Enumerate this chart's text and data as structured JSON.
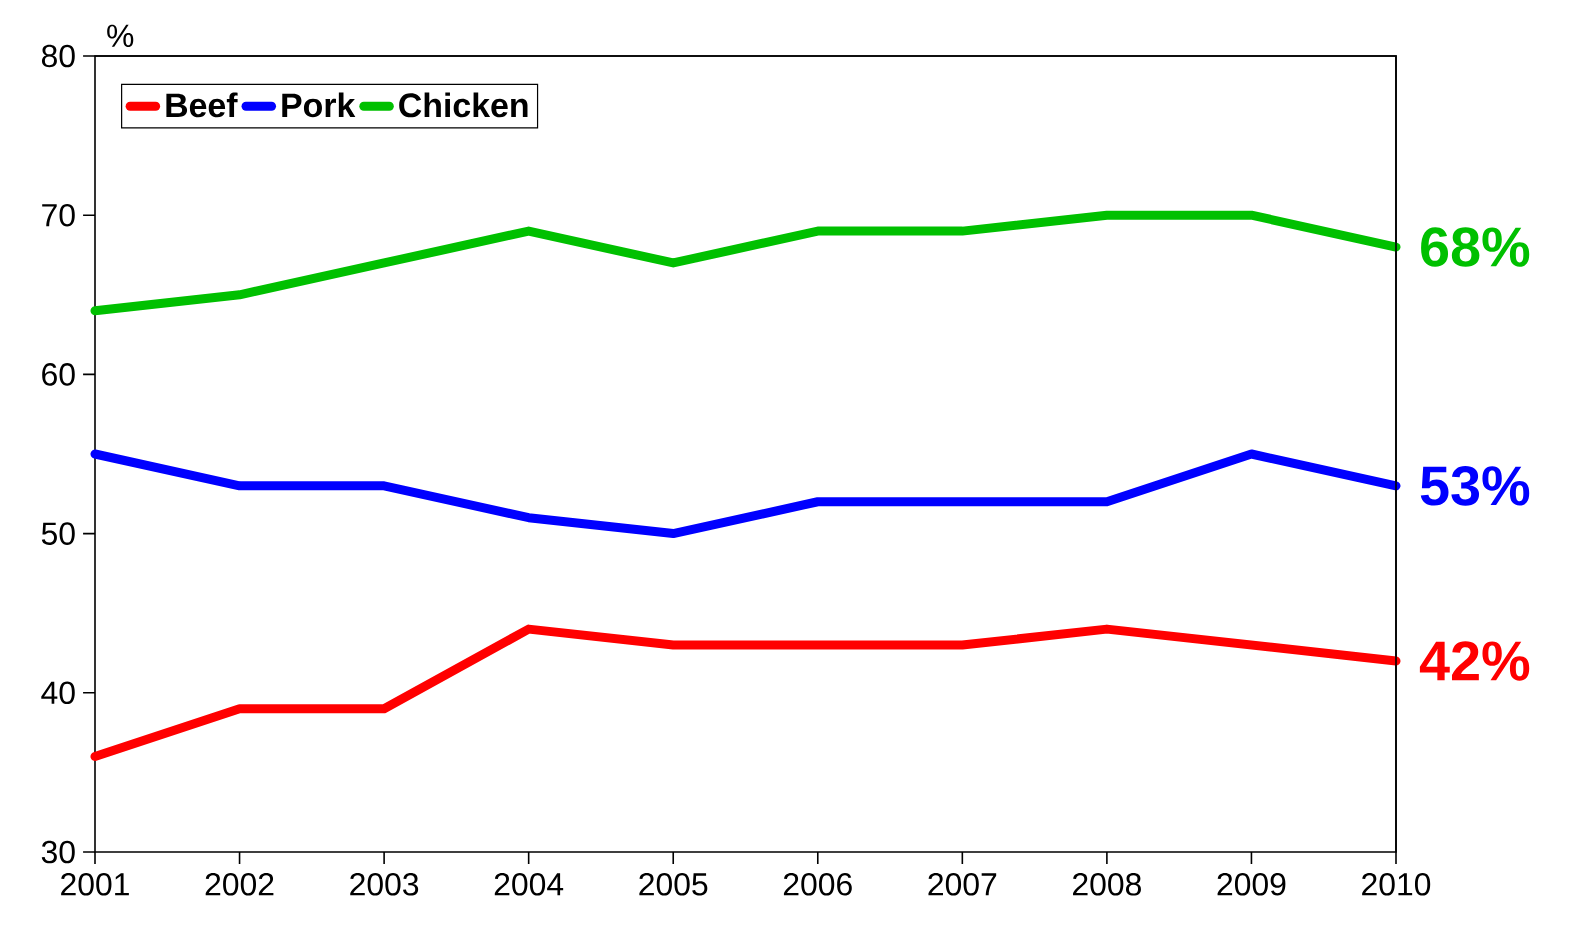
{
  "chart_data": {
    "type": "line",
    "ylabel": "%",
    "x": [
      2001,
      2002,
      2003,
      2004,
      2005,
      2006,
      2007,
      2008,
      2009,
      2010
    ],
    "xlim": [
      2001,
      2010
    ],
    "xticks": [
      2001,
      2002,
      2003,
      2004,
      2005,
      2006,
      2007,
      2008,
      2009,
      2010
    ],
    "ylim": [
      30,
      80
    ],
    "yticks": [
      30,
      40,
      50,
      60,
      70,
      80
    ],
    "legend": "top left",
    "line_style": "solid",
    "grid": false,
    "series": [
      {
        "name": "Beef",
        "color": "#ff0000",
        "values": [
          36,
          39,
          39,
          44,
          43,
          43,
          43,
          44,
          43,
          42
        ],
        "value_labels": [
          null,
          null,
          null,
          null,
          null,
          null,
          null,
          null,
          null,
          "42%"
        ]
      },
      {
        "name": "Pork",
        "color": "#0000ff",
        "values": [
          55,
          53,
          53,
          51,
          50,
          52,
          52,
          52,
          55,
          53
        ],
        "value_labels": [
          null,
          null,
          null,
          null,
          null,
          null,
          null,
          null,
          null,
          "53%"
        ]
      },
      {
        "name": "Chicken",
        "color": "#00c000",
        "values": [
          64,
          65,
          67,
          69,
          67,
          69,
          69,
          70,
          70,
          68
        ],
        "value_labels": [
          null,
          null,
          null,
          null,
          null,
          null,
          null,
          null,
          null,
          "68%"
        ]
      }
    ]
  }
}
